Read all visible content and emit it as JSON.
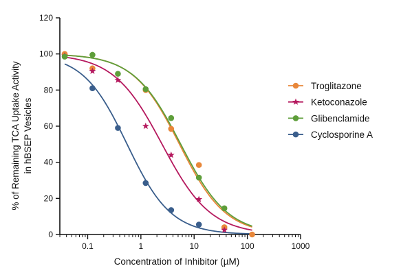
{
  "chart_data": {
    "type": "scatter",
    "xlabel": "Concentration of Inhibitor (µM)",
    "ylabel_lines": [
      "% of Remaining TCA Uptake Activity",
      "in hBSEP Vesicles"
    ],
    "xscale": "log",
    "xlim": [
      0.03,
      1000
    ],
    "ylim": [
      0,
      120
    ],
    "xticks": [
      0.1,
      1,
      10,
      100,
      1000
    ],
    "xtick_labels": [
      "0.1",
      "1",
      "10",
      "100",
      "1000"
    ],
    "yticks": [
      0,
      20,
      40,
      60,
      80,
      100,
      120
    ],
    "ytick_labels": [
      "0",
      "20",
      "40",
      "60",
      "80",
      "100",
      "120"
    ],
    "grid": false,
    "legend_position": "right",
    "series": [
      {
        "name": "Troglitazone",
        "color": "#E8873A",
        "marker": "circle",
        "x": [
          0.037,
          0.123,
          0.37,
          1.23,
          3.7,
          12.3,
          37,
          123
        ],
        "y": [
          100,
          92,
          0,
          80,
          58.5,
          38.5,
          4,
          0
        ],
        "show": [
          true,
          true,
          false,
          true,
          true,
          true,
          true,
          true
        ],
        "fit": {
          "top": 100,
          "bottom": 0,
          "ic50": 5.3,
          "hill": 1.0,
          "x_range": [
            0.037,
            123
          ]
        }
      },
      {
        "name": "Ketoconazole",
        "color": "#B5195E",
        "marker": "star",
        "x": [
          0.037,
          0.123,
          0.37,
          1.23,
          3.7,
          12.3,
          37,
          123
        ],
        "y": [
          99,
          90.5,
          85.5,
          60,
          44,
          19.5,
          2.5,
          0
        ],
        "show": [
          true,
          true,
          true,
          true,
          true,
          true,
          true,
          false
        ],
        "fit": {
          "top": 100,
          "bottom": 0,
          "ic50": 2.5,
          "hill": 0.95,
          "x_range": [
            0.037,
            123
          ]
        }
      },
      {
        "name": "Glibenclamide",
        "color": "#5E9E3A",
        "marker": "circle",
        "x": [
          0.037,
          0.123,
          0.37,
          1.23,
          3.7,
          12.3,
          37,
          123
        ],
        "y": [
          98.5,
          99.5,
          89,
          80.5,
          64.5,
          31.5,
          14.5,
          0
        ],
        "show": [
          true,
          true,
          true,
          true,
          true,
          true,
          true,
          false
        ],
        "fit": {
          "top": 100,
          "bottom": 0,
          "ic50": 5.6,
          "hill": 0.98,
          "x_range": [
            0.037,
            123
          ]
        }
      },
      {
        "name": "Cyclosporine A",
        "color": "#3A5E8C",
        "marker": "circle",
        "x": [
          0.041,
          0.123,
          0.37,
          1.23,
          3.7,
          12.3,
          37,
          123
        ],
        "y": [
          98,
          81,
          59,
          28.5,
          13.5,
          5.5,
          0,
          0
        ],
        "show": [
          false,
          true,
          true,
          true,
          true,
          true,
          false,
          false
        ],
        "fit": {
          "top": 100,
          "bottom": 0,
          "ic50": 0.55,
          "hill": 1.05,
          "x_range": [
            0.037,
            123
          ]
        }
      }
    ]
  }
}
